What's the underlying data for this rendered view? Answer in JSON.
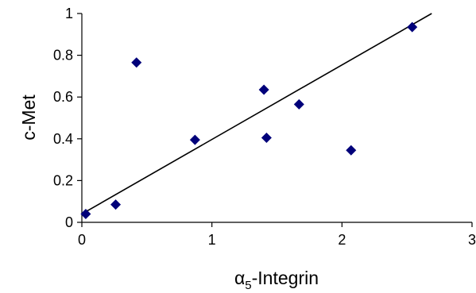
{
  "chart_data": {
    "type": "scatter",
    "title": "",
    "xlabel_main": "α",
    "xlabel_sub": "5",
    "xlabel_rest": "-Integrin",
    "ylabel": "c-Met",
    "xlim": [
      0,
      3
    ],
    "ylim": [
      0,
      1
    ],
    "x_ticks": [
      0,
      1,
      2,
      3
    ],
    "y_ticks": [
      0,
      0.2,
      0.4,
      0.6,
      0.8,
      1
    ],
    "x_tick_labels": [
      "0",
      "1",
      "2",
      "3"
    ],
    "y_tick_labels": [
      "0",
      "0.2",
      "0.4",
      "0.6",
      "0.8",
      "1"
    ],
    "grid": false,
    "marker": "diamond",
    "marker_color": "#00007a",
    "series": [
      {
        "x": [
          0.03,
          0.26,
          0.42,
          0.87,
          1.4,
          1.42,
          1.67,
          2.07,
          2.54
        ],
        "y": [
          0.04,
          0.085,
          0.765,
          0.395,
          0.635,
          0.405,
          0.565,
          0.345,
          0.935
        ]
      }
    ],
    "trendline": {
      "x": [
        0.0,
        2.69
      ],
      "y": [
        0.04,
        1.0
      ]
    }
  }
}
